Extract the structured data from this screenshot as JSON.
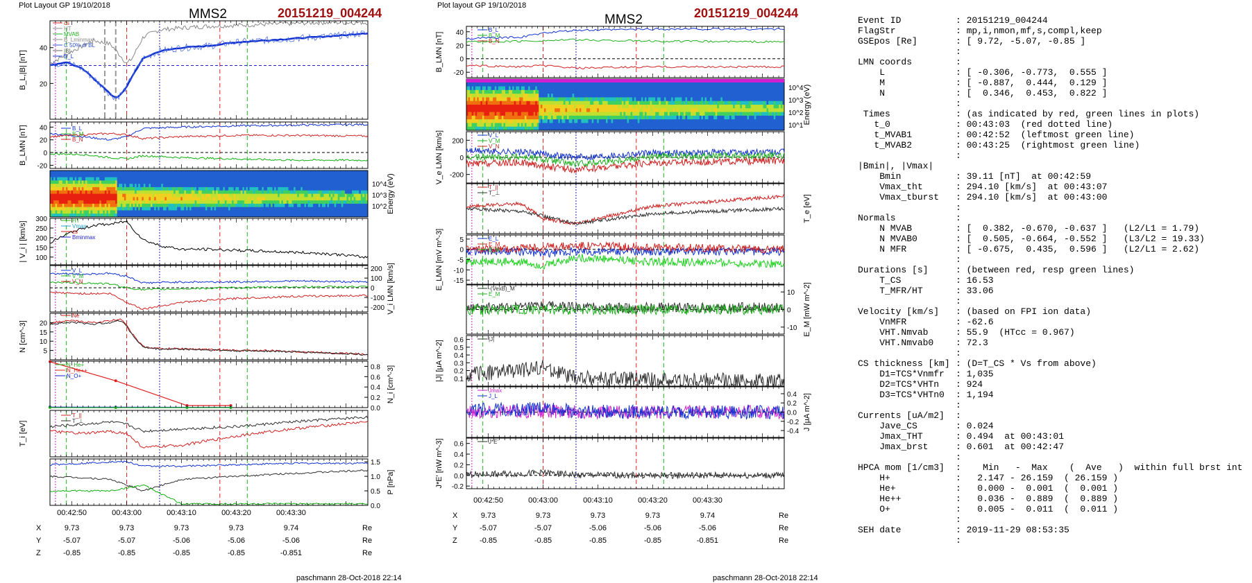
{
  "left_plot": {
    "layout_label": "Plot Layout GP 19/10/2018",
    "title": "MMS2",
    "event": "20151219_004244",
    "footer": "paschmann 28-Oct-2018 22:14",
    "time_ticks": [
      "00:42:50",
      "00:43:00",
      "00:43:10",
      "00:43:20",
      "00:43:30"
    ],
    "coords": {
      "rows": [
        {
          "label": "X",
          "values": [
            "9.73",
            "9.73",
            "9.73",
            "9.73",
            "9.74"
          ],
          "unit": "Re"
        },
        {
          "label": "Y",
          "values": [
            "-5.07",
            "-5.07",
            "-5.06",
            "-5.06",
            "-5.06"
          ],
          "unit": "Re"
        },
        {
          "label": "Z",
          "values": [
            "-0.85",
            "-0.85",
            "-0.85",
            "-0.85",
            "-0.851"
          ],
          "unit": "Re"
        }
      ]
    }
  },
  "right_plot": {
    "layout_label": "Plot layout GP 19/10/2018",
    "title": "MMS2",
    "event": "20151219_004244",
    "footer": "paschmann 28-Oct-2018 22:14",
    "time_ticks": [
      "00:42:50",
      "00:43:00",
      "00:43:10",
      "00:43:20",
      "00:43:30"
    ],
    "coords": {
      "rows": [
        {
          "label": "X",
          "values": [
            "9.73",
            "9.73",
            "9.73",
            "9.73",
            "9.74"
          ],
          "unit": "Re"
        },
        {
          "label": "Y",
          "values": [
            "-5.07",
            "-5.07",
            "-5.06",
            "-5.06",
            "-5.06"
          ],
          "unit": "Re"
        },
        {
          "label": "Z",
          "values": [
            "-0.85",
            "-0.85",
            "-0.85",
            "-0.85",
            "-0.851"
          ],
          "unit": "Re"
        }
      ]
    }
  },
  "chart_data": [
    {
      "type": "line",
      "ylabel": "B_L,|B| [nT]",
      "ylim": [
        0,
        55
      ],
      "yticks": [
        "20",
        "40"
      ],
      "legend": [
        "cs",
        "HT",
        "MVAB",
        "B_Lminmax",
        "C 50% of BL",
        "|B|",
        "B_L"
      ],
      "series": [
        {
          "name": "|B|",
          "color": "#888888",
          "x": [
            -14,
            -10,
            -6,
            -3,
            -1,
            0,
            1,
            3,
            6,
            10,
            15,
            25,
            35,
            43
          ],
          "y": [
            31,
            38,
            44,
            42,
            35,
            31,
            34,
            46,
            50,
            51,
            52,
            53,
            54,
            54
          ]
        },
        {
          "name": "B_L",
          "color": "#1030d0",
          "x": [
            -14,
            -11,
            -8,
            -5,
            -3,
            -2,
            -1,
            0,
            1,
            3,
            6,
            10,
            15,
            20,
            25,
            30,
            35,
            40,
            43
          ],
          "y": [
            30,
            32,
            28,
            20,
            14,
            12,
            14,
            18,
            24,
            34,
            38,
            40,
            41,
            43,
            44,
            45,
            46,
            47,
            48
          ]
        }
      ],
      "annotations": {
        "reference_line_y": 30,
        "t_0": 0,
        "t_MVAB1": -11,
        "t_MVAB2": 22
      }
    },
    {
      "type": "line",
      "ylabel": "B_LMN [nT]",
      "ylim": [
        -25,
        48
      ],
      "yticks": [
        "-20",
        "0",
        "20",
        "40"
      ],
      "legend": [
        "B_L",
        "B_M",
        "B_N"
      ],
      "series": [
        {
          "name": "B_L",
          "color": "#1030d0",
          "x": [
            -14,
            -8,
            -3,
            0,
            3,
            10,
            20,
            30,
            43
          ],
          "y": [
            30,
            25,
            20,
            25,
            38,
            40,
            42,
            43,
            44
          ]
        },
        {
          "name": "B_M",
          "color": "#d02020",
          "x": [
            -14,
            -8,
            -3,
            0,
            3,
            10,
            20,
            30,
            43
          ],
          "y": [
            25,
            28,
            30,
            28,
            22,
            25,
            27,
            27,
            26
          ]
        },
        {
          "name": "B_N",
          "color": "#10b010",
          "x": [
            -14,
            -8,
            -3,
            0,
            3,
            10,
            20,
            30,
            43
          ],
          "y": [
            -2,
            -3,
            -8,
            -10,
            -5,
            -8,
            -10,
            -12,
            -12
          ]
        }
      ]
    },
    {
      "type": "heatmap",
      "ylabel": "Energy (eV)",
      "yticks": [
        "10^2",
        "10^3",
        "10^4"
      ],
      "description_values": {
        "x_boundary_red_end": -2,
        "x_red_start": -14
      }
    },
    {
      "type": "line",
      "ylabel": "| V_i | [km/s]",
      "ylim": [
        60,
        300
      ],
      "yticks": [
        "100",
        "150",
        "200",
        "250",
        "300"
      ],
      "legend": [
        "HT",
        "Vmax",
        "cs",
        "Bminmax"
      ],
      "series": [
        {
          "name": "|V_i|",
          "color": "#000000",
          "x": [
            -14,
            -10,
            -6,
            -3,
            -1,
            0,
            1,
            3,
            6,
            10,
            15,
            20,
            25,
            30,
            35,
            40,
            43
          ],
          "y": [
            175,
            230,
            265,
            270,
            280,
            285,
            250,
            190,
            160,
            140,
            140,
            135,
            130,
            125,
            120,
            110,
            100
          ]
        }
      ]
    },
    {
      "type": "line",
      "ylabel": "V_i LMN [km/s]",
      "ylim": [
        -250,
        230
      ],
      "yticks": [
        "-200",
        "-100",
        "0",
        "100",
        "200"
      ],
      "legend": [
        "V_L",
        "V_M",
        "V_N"
      ],
      "series": [
        {
          "name": "V_L",
          "color": "#1030d0",
          "x": [
            -14,
            -8,
            -3,
            0,
            3,
            10,
            20,
            30,
            43
          ],
          "y": [
            150,
            140,
            150,
            120,
            50,
            60,
            60,
            70,
            60
          ]
        },
        {
          "name": "V_M",
          "color": "#10b010",
          "x": [
            -14,
            -8,
            -3,
            0,
            3,
            10,
            20,
            30,
            43
          ],
          "y": [
            60,
            50,
            40,
            0,
            -20,
            -10,
            0,
            10,
            10
          ]
        },
        {
          "name": "V_N",
          "color": "#d02020",
          "x": [
            -14,
            -8,
            -3,
            0,
            3,
            10,
            20,
            30,
            43
          ],
          "y": [
            -50,
            -60,
            -60,
            -150,
            -220,
            -150,
            -110,
            -90,
            -80
          ]
        }
      ]
    },
    {
      "type": "line",
      "ylabel": "N [cm^-3]",
      "ylim": [
        0,
        25
      ],
      "yticks": [
        "5",
        "10",
        "15",
        "20"
      ],
      "legend": [
        "Ne"
      ],
      "series": [
        {
          "name": "Ne",
          "color": "#d02020",
          "x": [
            -14,
            -10,
            -6,
            -3,
            -1,
            0,
            1,
            3,
            6,
            10,
            15,
            20,
            25,
            30,
            35,
            40,
            43
          ],
          "y": [
            20,
            21,
            20,
            21,
            22,
            19,
            14,
            7,
            6,
            6,
            5.5,
            5,
            5,
            4.5,
            4,
            3.5,
            3
          ]
        }
      ]
    },
    {
      "type": "line",
      "ylabel": "N_i [cm^-3]",
      "ylim": [
        0,
        0.9
      ],
      "yticks": [
        "0.0",
        "0.2",
        "0.4",
        "0.6",
        "0.8"
      ],
      "legend": [
        "N_He+",
        "N_He++",
        "N_O+"
      ],
      "series": [
        {
          "name": "N_He++",
          "color": "#e02020",
          "x": [
            -14,
            -2,
            11,
            19
          ],
          "y": [
            0.89,
            0.52,
            0.04,
            0.04
          ]
        },
        {
          "name": "N_O+",
          "color": "#1020d0",
          "x": [
            -14,
            -2,
            11,
            19
          ],
          "y": [
            0.011,
            0.008,
            0.006,
            0.005
          ]
        },
        {
          "name": "N_He+",
          "color": "#20b020",
          "x": [
            -14,
            -2,
            11,
            19
          ],
          "y": [
            0.001,
            0.0,
            0.0,
            0.0
          ]
        }
      ]
    },
    {
      "type": "line",
      "ylabel": "T_i [eV]",
      "legend": [
        "T_||",
        "T_⊥"
      ],
      "series": [
        {
          "name": "T_||",
          "color": "#d02020",
          "x": [
            -14,
            -8,
            -3,
            0,
            3,
            10,
            20,
            30,
            43
          ],
          "y": [
            0.55,
            0.5,
            0.55,
            0.5,
            0.2,
            0.25,
            0.45,
            0.6,
            0.75
          ]
        },
        {
          "name": "T_⊥",
          "color": "#303030",
          "x": [
            -14,
            -8,
            -3,
            0,
            3,
            10,
            20,
            30,
            43
          ],
          "y": [
            0.65,
            0.7,
            0.75,
            0.7,
            0.55,
            0.6,
            0.65,
            0.75,
            0.85
          ]
        }
      ]
    },
    {
      "type": "line",
      "ylabel": "P [nPa]",
      "ylim": [
        0,
        1.6
      ],
      "yticks": [
        "0.0",
        "0.5",
        "1.0",
        "1.5"
      ],
      "series": [
        {
          "name": "P_total",
          "color": "#1030d0",
          "x": [
            -14,
            -8,
            -3,
            0,
            3,
            10,
            20,
            30,
            43
          ],
          "y": [
            1.4,
            1.45,
            1.5,
            1.5,
            1.35,
            1.35,
            1.4,
            1.45,
            1.45
          ]
        },
        {
          "name": "P_th",
          "color": "#303030",
          "x": [
            -14,
            -8,
            -3,
            0,
            3,
            10,
            20,
            30,
            43
          ],
          "y": [
            1.0,
            0.95,
            0.9,
            0.7,
            0.5,
            0.9,
            1.0,
            1.1,
            1.2
          ]
        },
        {
          "name": "P_B",
          "color": "#10b010",
          "x": [
            -14,
            -8,
            -3,
            0,
            3,
            10,
            20,
            30,
            43
          ],
          "y": [
            0.5,
            0.5,
            0.5,
            0.6,
            0.7,
            0.05,
            0.05,
            0.05,
            0.05
          ]
        }
      ]
    }
  ],
  "info": {
    "rows": [
      {
        "k": "Event ID",
        "v": ": 20151219_004244"
      },
      {
        "k": "FlagStr",
        "v": ": mp,i,nmon,mf,s,compl,keep"
      },
      {
        "k": "GSEpos [Re]",
        "v": ": [ 9.72, -5.07, -0.85 ]"
      },
      {
        "k": "",
        "v": ":"
      },
      {
        "k": "LMN coords",
        "v": ":"
      },
      {
        "k": "    L",
        "v": ": [ -0.306, -0.773,  0.555 ]"
      },
      {
        "k": "    M",
        "v": ": [ -0.887,  0.444,  0.129 ]"
      },
      {
        "k": "    N",
        "v": ": [  0.346,  0.453,  0.822 ]"
      },
      {
        "k": "",
        "v": ":"
      },
      {
        "k": " Times",
        "v": ": (as indicated by red, green lines in plots)"
      },
      {
        "k": "   t_0",
        "v": ": 00:43:03  (red dotted line)"
      },
      {
        "k": "   t_MVAB1",
        "v": ": 00:42:52  (leftmost green line)"
      },
      {
        "k": "   t_MVAB2",
        "v": ": 00:43:25  (rightmost green line)"
      },
      {
        "k": "",
        "v": ":"
      },
      {
        "k": "|Bmin|, |Vmax|",
        "v": ""
      },
      {
        "k": "    Bmin",
        "v": ": 39.11 [nT]  at 00:42:59"
      },
      {
        "k": "    Vmax_tht",
        "v": ": 294.10 [km/s]  at 00:43:07"
      },
      {
        "k": "    Vmax_tburst",
        "v": ": 294.10 [km/s]  at 00:43:00"
      },
      {
        "k": "",
        "v": ":"
      },
      {
        "k": "Normals",
        "v": ":"
      },
      {
        "k": "    N MVAB",
        "v": ": [  0.382, -0.670, -0.637 ]   (L2/L1 = 1.79)"
      },
      {
        "k": "    N MVAB0",
        "v": ": [  0.505, -0.664, -0.552 ]   (L3/L2 = 19.33)"
      },
      {
        "k": "    N MFR",
        "v": ": [ -0.675,  0.435,  0.596 ]   (L2/L1 = 2.62)"
      },
      {
        "k": "",
        "v": ":"
      },
      {
        "k": "Durations [s]",
        "v": ": (between red, resp green lines)"
      },
      {
        "k": "    T_CS",
        "v": ": 16.53"
      },
      {
        "k": "    T_MFR/HT",
        "v": ": 33.06"
      },
      {
        "k": "",
        "v": ":"
      },
      {
        "k": "Velocity [km/s]",
        "v": ": (based on FPI ion data)"
      },
      {
        "k": "    VnMFR",
        "v": ": -62.6"
      },
      {
        "k": "    VHT.Nmvab",
        "v": ": 55.9  (HTcc = 0.967)"
      },
      {
        "k": "    VHT.Nmvab0",
        "v": ": 72.3"
      },
      {
        "k": "",
        "v": ":"
      },
      {
        "k": "CS thickness [km]",
        "v": ": (D=T_CS * Vs from above)"
      },
      {
        "k": "    D1=TCS*Vnmfr",
        "v": ": 1,035"
      },
      {
        "k": "    D2=TCS*VHTn",
        "v": ": 924"
      },
      {
        "k": "    D3=TCS*VHTn0",
        "v": ": 1,194"
      },
      {
        "k": "",
        "v": ":"
      },
      {
        "k": "Currents [uA/m2]",
        "v": ":"
      },
      {
        "k": "    Jave_CS",
        "v": ": 0.024"
      },
      {
        "k": "    Jmax_THT",
        "v": ": 0.494  at 00:43:01"
      },
      {
        "k": "    Jmax_brst",
        "v": ": 0.601  at 00:42:47"
      },
      {
        "k": "",
        "v": ":"
      },
      {
        "k": "HPCA mom [1/cm3]",
        "v": ":    Min   -  Max    (  Ave   )  within full brst int"
      },
      {
        "k": "    H+",
        "v": ":   2.147 - 26.159  ( 26.159 )"
      },
      {
        "k": "    He+",
        "v": ":   0.000 -  0.001  (  0.001 )"
      },
      {
        "k": "    He++",
        "v": ":   0.036 -  0.889  (  0.889 )"
      },
      {
        "k": "    O+",
        "v": ":   0.005 -  0.011  (  0.011 )"
      },
      {
        "k": "",
        "v": ":"
      },
      {
        "k": "SEH date",
        "v": ": 2019-11-29 08:53:35"
      },
      {
        "k": "",
        "v": ":"
      }
    ]
  },
  "right_panels": {
    "ylabels": [
      "B_LMN [nT]",
      "Energy (eV)",
      "V_e LMN [km/s]",
      "T_e [eV]",
      "E_LMN [mV m^-3]",
      "E_M [mW m^-2]",
      "|J| [μA m^-2]",
      "J [μA m^-2]",
      "J*E' [nW m^-3]"
    ],
    "legends": [
      [
        "B_L",
        "B_M",
        "B_N"
      ],
      [],
      [
        "V_L",
        "V_M",
        "V_N"
      ],
      [
        "T_||",
        "T_⊥"
      ],
      [
        "E_L",
        "E_M",
        "E_N"
      ],
      [
        "-(VexB)_M",
        "E_M"
      ],
      [
        "|J|"
      ],
      [
        "Jmax",
        "J_L"
      ],
      [
        "J*E'"
      ]
    ],
    "yticks": [
      [
        "-20",
        "0",
        "20",
        "40"
      ],
      [
        "10^1",
        "10^2",
        "10^3",
        "10^4"
      ],
      [
        "-200",
        "0",
        "200"
      ],
      [],
      [
        "-15",
        "-10",
        "-5",
        "0",
        "5"
      ],
      [
        "-10",
        "0",
        "10"
      ],
      [
        "0.1",
        "0.2",
        "0.3",
        "0.4",
        "0.5",
        "0.6"
      ],
      [
        "-0.4",
        "-0.2",
        "0.0",
        "0.2",
        "0.4"
      ],
      [
        "-0.2",
        "0.0",
        "0.2",
        "0.4",
        "0.6"
      ]
    ]
  }
}
